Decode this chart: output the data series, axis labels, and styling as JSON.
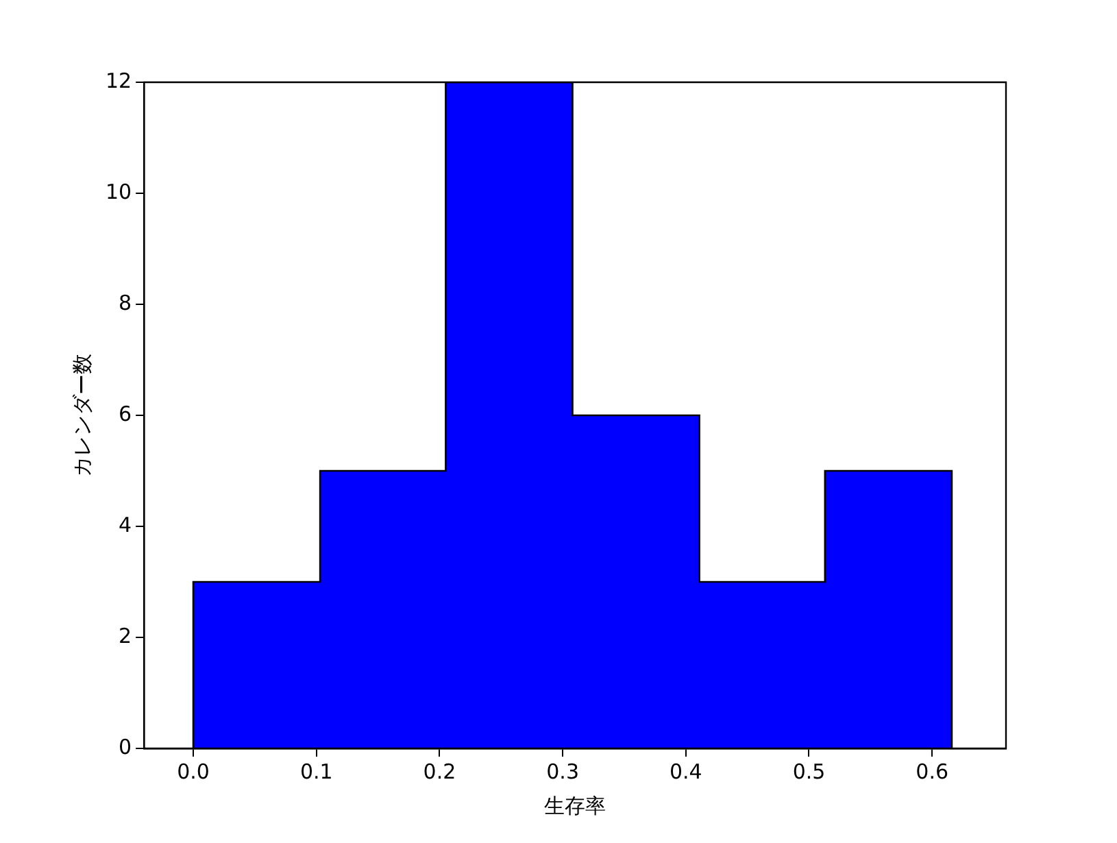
{
  "chart_data": {
    "type": "histogram",
    "xlabel": "生存率",
    "ylabel": "カレンダー数",
    "bins": [
      0,
      0.103,
      0.205,
      0.308,
      0.411,
      0.513,
      0.616
    ],
    "values": [
      3,
      5,
      12,
      6,
      3,
      5
    ],
    "color": "#0000ff",
    "xlim": [
      -0.04,
      0.66
    ],
    "xticks": [
      {
        "value": 0,
        "label": "0.0"
      },
      0.1,
      0.2,
      0.3,
      0.4,
      0.5,
      0.6
    ],
    "ylim": [
      0,
      12
    ],
    "yticks": [
      0,
      2,
      4,
      6,
      8,
      10,
      12
    ],
    "grid": false,
    "legend": false
  }
}
